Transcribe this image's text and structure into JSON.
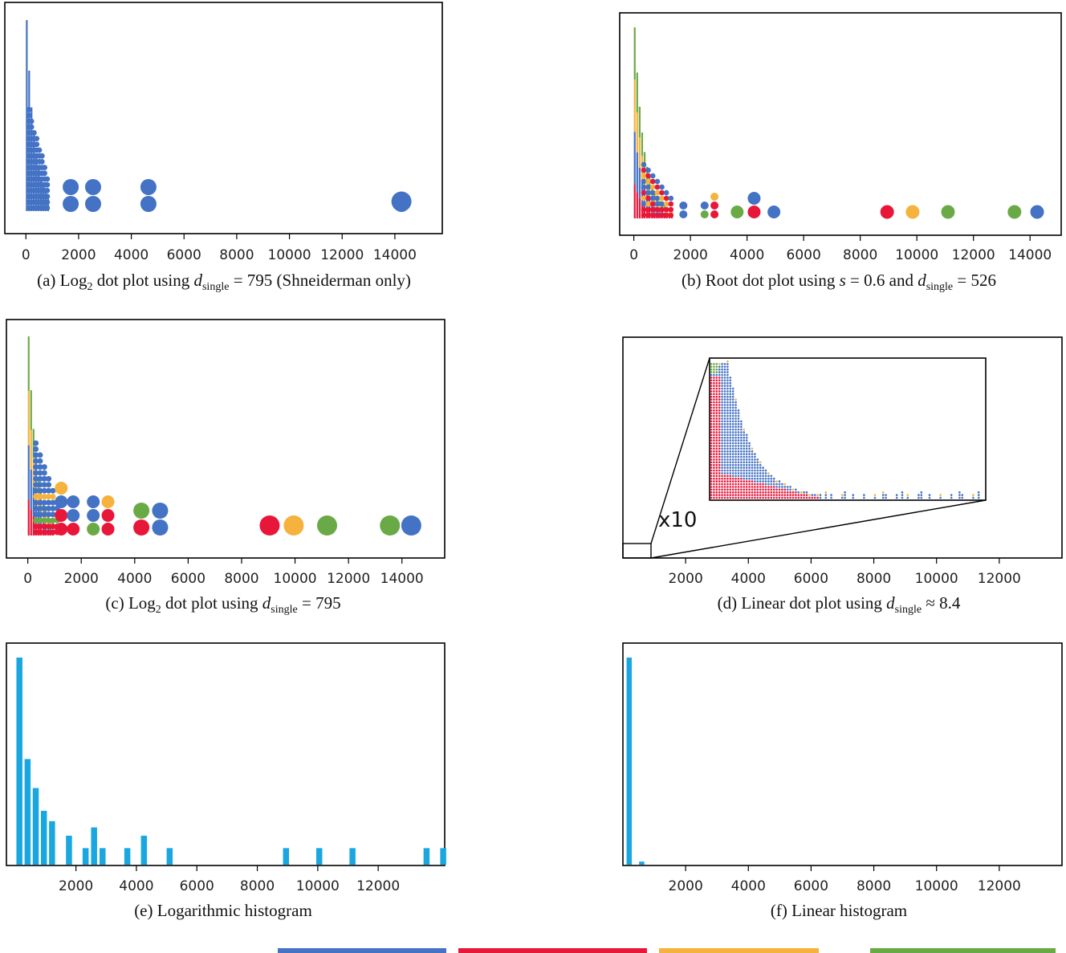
{
  "palette": {
    "blue": "#4472c4",
    "red": "#e8173a",
    "orange": "#f5b23c",
    "green": "#6aaa46",
    "hist": "#1aa7e0"
  },
  "captions": {
    "a": {
      "pre": "(a) Log",
      "sub": "2",
      "mid": " dot plot using ",
      "var": "d",
      "varsub": "single",
      "post": " = 795 (Shneiderman only)"
    },
    "b": {
      "pre": "(b) Root dot plot using ",
      "var1": "s",
      "mid": " = 0.6 and ",
      "var": "d",
      "varsub": "single",
      "post": " = 526"
    },
    "c": {
      "pre": "(c) Log",
      "sub": "2",
      "mid": " dot plot using ",
      "var": "d",
      "varsub": "single",
      "post": " = 795"
    },
    "d": {
      "pre": "(d) Linear dot plot using ",
      "var": "d",
      "varsub": "single",
      "post": " ≈ 8.4"
    },
    "e": {
      "text": "(e) Logarithmic histogram"
    },
    "f": {
      "text": "(f) Linear histogram"
    }
  },
  "zoom_label": "x10",
  "chart_data": [
    {
      "id": "a",
      "type": "scatter",
      "title": "",
      "xlim": [
        -800,
        15800
      ],
      "xticks": [
        0,
        2000,
        4000,
        6000,
        8000,
        10000,
        12000,
        14000
      ],
      "grid": false,
      "dot_columns": [
        {
          "x": 1700,
          "stack": [
            "blue",
            "blue"
          ]
        },
        {
          "x": 2550,
          "stack": [
            "blue",
            "blue"
          ]
        },
        {
          "x": 4650,
          "stack": [
            "blue",
            "blue"
          ]
        },
        {
          "x": 14250,
          "stack": [
            "blue"
          ]
        }
      ],
      "dense_region": {
        "x_start": 0,
        "x_end": 900,
        "colors": [
          "blue"
        ]
      }
    },
    {
      "id": "b",
      "type": "scatter",
      "title": "",
      "xlim": [
        -500,
        15100
      ],
      "xticks": [
        0,
        2000,
        4000,
        6000,
        8000,
        10000,
        12000,
        14000
      ],
      "grid": false,
      "dot_columns": [
        {
          "x": 1750,
          "stack": [
            "blue",
            "blue"
          ]
        },
        {
          "x": 2500,
          "stack": [
            "green",
            "blue"
          ]
        },
        {
          "x": 2850,
          "stack": [
            "red",
            "red",
            "orange"
          ]
        },
        {
          "x": 3650,
          "stack": [
            "green"
          ]
        },
        {
          "x": 4250,
          "stack": [
            "red",
            "blue"
          ]
        },
        {
          "x": 4950,
          "stack": [
            "blue"
          ]
        },
        {
          "x": 8950,
          "stack": [
            "red"
          ]
        },
        {
          "x": 9850,
          "stack": [
            "orange"
          ]
        },
        {
          "x": 11100,
          "stack": [
            "green"
          ]
        },
        {
          "x": 13450,
          "stack": [
            "green"
          ]
        },
        {
          "x": 14250,
          "stack": [
            "blue"
          ]
        }
      ],
      "dense_region": {
        "x_start": 0,
        "x_end": 1400,
        "colors": [
          "red",
          "blue",
          "orange",
          "green"
        ]
      }
    },
    {
      "id": "c",
      "type": "scatter",
      "title": "",
      "xlim": [
        -800,
        15600
      ],
      "xticks": [
        0,
        2000,
        4000,
        6000,
        8000,
        10000,
        12000,
        14000
      ],
      "grid": false,
      "dot_columns": [
        {
          "x": 1250,
          "stack": [
            "red",
            "red",
            "blue",
            "orange"
          ]
        },
        {
          "x": 1700,
          "stack": [
            "red",
            "blue",
            "blue"
          ]
        },
        {
          "x": 2450,
          "stack": [
            "green",
            "blue",
            "blue"
          ]
        },
        {
          "x": 3000,
          "stack": [
            "red",
            "red",
            "orange"
          ]
        },
        {
          "x": 4250,
          "stack": [
            "red",
            "green"
          ]
        },
        {
          "x": 4950,
          "stack": [
            "blue",
            "blue"
          ]
        },
        {
          "x": 9050,
          "stack": [
            "red"
          ]
        },
        {
          "x": 9950,
          "stack": [
            "orange"
          ]
        },
        {
          "x": 11200,
          "stack": [
            "green"
          ]
        },
        {
          "x": 13550,
          "stack": [
            "green"
          ]
        },
        {
          "x": 14350,
          "stack": [
            "blue"
          ]
        }
      ],
      "dense_region": {
        "x_start": 0,
        "x_end": 1000,
        "colors": [
          "red",
          "blue",
          "orange",
          "green"
        ]
      }
    },
    {
      "id": "d",
      "type": "scatter",
      "title": "",
      "xlim": [
        0,
        14000
      ],
      "xticks": [
        2000,
        4000,
        6000,
        8000,
        10000,
        12000
      ],
      "grid": false,
      "inset": {
        "zoom": 10,
        "x_range": [
          0,
          1000
        ]
      }
    },
    {
      "id": "e",
      "type": "bar",
      "title": "",
      "xlim": [
        -300,
        14200
      ],
      "xticks": [
        2000,
        4000,
        6000,
        8000,
        10000,
        12000
      ],
      "bars": [
        {
          "x": 130,
          "value": 100
        },
        {
          "x": 400,
          "value": 51
        },
        {
          "x": 670,
          "value": 37
        },
        {
          "x": 940,
          "value": 26
        },
        {
          "x": 1210,
          "value": 21
        },
        {
          "x": 1770,
          "value": 14
        },
        {
          "x": 2320,
          "value": 8
        },
        {
          "x": 2600,
          "value": 18
        },
        {
          "x": 2880,
          "value": 8
        },
        {
          "x": 3700,
          "value": 8
        },
        {
          "x": 4250,
          "value": 14
        },
        {
          "x": 5100,
          "value": 8
        },
        {
          "x": 8950,
          "value": 8
        },
        {
          "x": 10050,
          "value": 8
        },
        {
          "x": 11150,
          "value": 8
        },
        {
          "x": 13600,
          "value": 8
        },
        {
          "x": 14150,
          "value": 8
        }
      ]
    },
    {
      "id": "f",
      "type": "bar",
      "title": "",
      "xlim": [
        0,
        14000
      ],
      "xticks": [
        2000,
        4000,
        6000,
        8000,
        10000,
        12000
      ],
      "bars": [
        {
          "x": 200,
          "value": 100
        },
        {
          "x": 600,
          "value": 1.5
        }
      ]
    }
  ],
  "legend_swatches": [
    "blue",
    "red",
    "orange",
    "green"
  ]
}
